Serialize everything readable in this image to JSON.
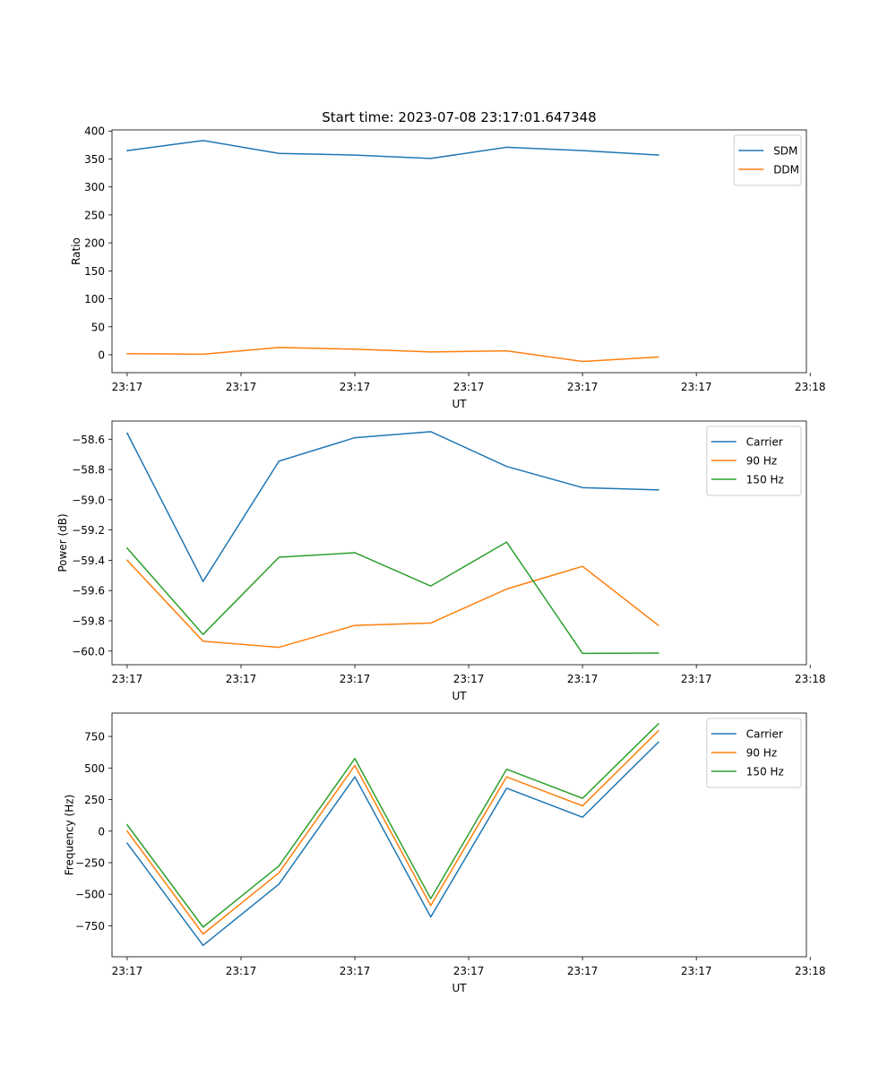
{
  "figure": {
    "title": "Start time: 2023-07-08 23:17:01.647348"
  },
  "colors": {
    "blue": "#1f77b4",
    "orange": "#ff7f0e",
    "green": "#2ca02c"
  },
  "chart_data": [
    {
      "type": "line",
      "title": "Start time: 2023-07-08 23:17:01.647348",
      "xlabel": "UT",
      "ylabel": "Ratio",
      "x": [
        1,
        2,
        3,
        4,
        5,
        6,
        7,
        8
      ],
      "xlim": [
        0.8,
        9.95
      ],
      "xticks": [
        1,
        2.5,
        4,
        5.5,
        7,
        8.5,
        10
      ],
      "xtick_labels": [
        "23:17",
        "23:17",
        "23:17",
        "23:17",
        "23:17",
        "23:17",
        "23:18"
      ],
      "ylim": [
        -32,
        402
      ],
      "yticks": [
        0,
        50,
        100,
        150,
        200,
        250,
        300,
        350,
        400
      ],
      "ytick_labels": [
        "0",
        "50",
        "100",
        "150",
        "200",
        "250",
        "300",
        "350",
        "400"
      ],
      "legend_position": "top-right",
      "series": [
        {
          "name": "SDM",
          "color": "#1f77b4",
          "values": [
            365,
            383,
            360,
            357,
            351,
            371,
            365,
            357
          ]
        },
        {
          "name": "DDM",
          "color": "#ff7f0e",
          "values": [
            2,
            1,
            13,
            10,
            5,
            7,
            -12,
            -4
          ]
        }
      ]
    },
    {
      "type": "line",
      "title": "",
      "xlabel": "UT",
      "ylabel": "Power (dB)",
      "x": [
        1,
        2,
        3,
        4,
        5,
        6,
        7,
        8
      ],
      "xlim": [
        0.8,
        9.95
      ],
      "xticks": [
        1,
        2.5,
        4,
        5.5,
        7,
        8.5,
        10
      ],
      "xtick_labels": [
        "23:17",
        "23:17",
        "23:17",
        "23:17",
        "23:17",
        "23:17",
        "23:18"
      ],
      "ylim": [
        -60.09,
        -58.48
      ],
      "yticks": [
        -60.0,
        -59.8,
        -59.6,
        -59.4,
        -59.2,
        -59.0,
        -58.8,
        -58.6
      ],
      "ytick_labels": [
        "−60.0",
        "−59.8",
        "−59.6",
        "−59.4",
        "−59.2",
        "−59.0",
        "−58.8",
        "−58.6"
      ],
      "legend_position": "top-right",
      "series": [
        {
          "name": "Carrier",
          "color": "#1f77b4",
          "values": [
            -58.56,
            -59.54,
            -58.745,
            -58.59,
            -58.55,
            -58.78,
            -58.92,
            -58.935
          ]
        },
        {
          "name": "90 Hz",
          "color": "#ff7f0e",
          "values": [
            -59.4,
            -59.935,
            -59.975,
            -59.83,
            -59.815,
            -59.59,
            -59.44,
            -59.83
          ]
        },
        {
          "name": "150 Hz",
          "color": "#2ca02c",
          "values": [
            -59.32,
            -59.89,
            -59.38,
            -59.35,
            -59.57,
            -59.28,
            -60.015,
            -60.013
          ]
        }
      ]
    },
    {
      "type": "line",
      "title": "",
      "xlabel": "UT",
      "ylabel": "Frequency (Hz)",
      "x": [
        1,
        2,
        3,
        4,
        5,
        6,
        7,
        8
      ],
      "xlim": [
        0.8,
        9.95
      ],
      "xticks": [
        1,
        2.5,
        4,
        5.5,
        7,
        8.5,
        10
      ],
      "xtick_labels": [
        "23:17",
        "23:17",
        "23:17",
        "23:17",
        "23:17",
        "23:17",
        "23:18"
      ],
      "ylim": [
        -995,
        935
      ],
      "yticks": [
        -750,
        -500,
        -250,
        0,
        250,
        500,
        750
      ],
      "ytick_labels": [
        "−750",
        "−500",
        "−250",
        "0",
        "250",
        "500",
        "750"
      ],
      "legend_position": "top-right",
      "series": [
        {
          "name": "Carrier",
          "color": "#1f77b4",
          "values": [
            -95,
            -905,
            -420,
            430,
            -680,
            340,
            110,
            705
          ]
        },
        {
          "name": "90 Hz",
          "color": "#ff7f0e",
          "values": [
            0,
            -815,
            -330,
            520,
            -590,
            430,
            200,
            795
          ]
        },
        {
          "name": "150 Hz",
          "color": "#2ca02c",
          "values": [
            50,
            -760,
            -275,
            575,
            -535,
            490,
            260,
            850
          ]
        }
      ]
    }
  ]
}
